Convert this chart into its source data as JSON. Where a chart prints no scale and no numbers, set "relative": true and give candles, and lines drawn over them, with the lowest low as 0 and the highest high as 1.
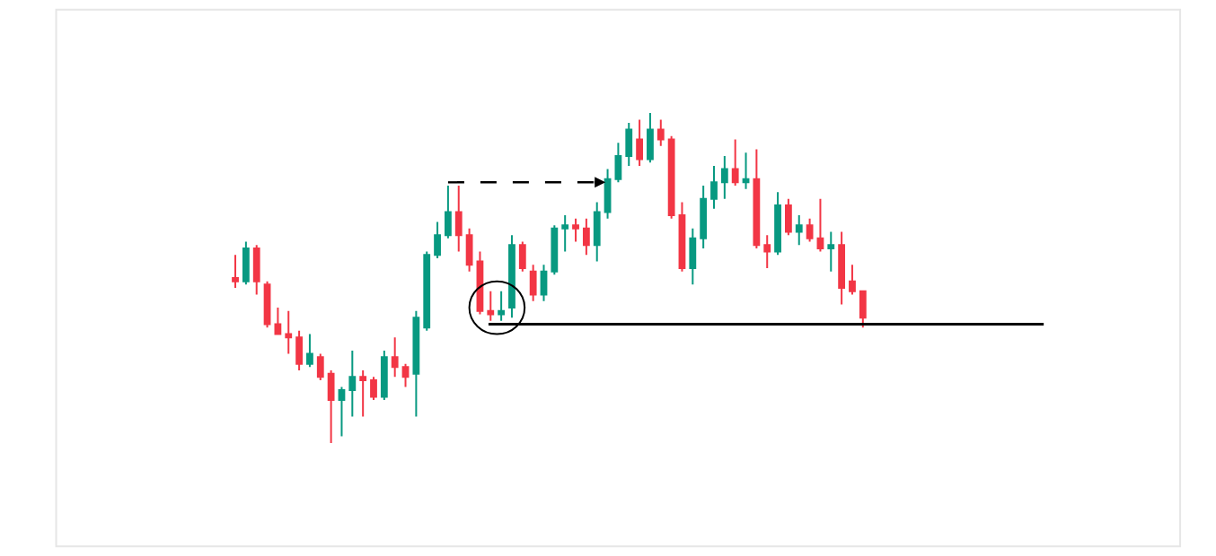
{
  "chart_data": {
    "type": "candlestick",
    "relative": true,
    "categories": [
      null,
      null,
      null,
      null,
      null,
      null,
      null,
      null,
      null,
      null,
      null,
      null,
      null,
      null,
      null,
      null,
      null,
      null,
      null,
      null,
      null,
      null,
      null,
      null,
      null,
      null,
      null,
      null,
      null,
      null,
      null,
      null,
      null,
      null,
      null,
      null,
      null,
      null,
      null,
      null,
      null,
      null,
      null,
      null,
      null,
      null,
      null,
      null,
      null,
      null,
      null,
      null,
      null,
      null,
      null,
      null,
      null,
      null,
      null,
      null
    ],
    "ohlc": [
      [
        0.5,
        0.57,
        0.47,
        0.49
      ],
      [
        0.49,
        0.61,
        0.48,
        0.59
      ],
      [
        0.59,
        0.6,
        0.45,
        0.49
      ],
      [
        0.48,
        0.49,
        0.35,
        0.36
      ],
      [
        0.36,
        0.41,
        0.33,
        0.33
      ],
      [
        0.33,
        0.4,
        0.27,
        0.32
      ],
      [
        0.32,
        0.34,
        0.22,
        0.24
      ],
      [
        0.24,
        0.33,
        0.23,
        0.27
      ],
      [
        0.26,
        0.27,
        0.19,
        0.2
      ],
      [
        0.21,
        0.22,
        0,
        0.13
      ],
      [
        0.13,
        0.17,
        0.02,
        0.16
      ],
      [
        0.16,
        0.28,
        0.08,
        0.2
      ],
      [
        0.2,
        0.22,
        0.08,
        0.19
      ],
      [
        0.19,
        0.2,
        0.13,
        0.14
      ],
      [
        0.14,
        0.28,
        0.13,
        0.26
      ],
      [
        0.26,
        0.32,
        0.2,
        0.23
      ],
      [
        0.23,
        0.24,
        0.17,
        0.2
      ],
      [
        0.21,
        0.4,
        0.08,
        0.38
      ],
      [
        0.35,
        0.58,
        0.34,
        0.57
      ],
      [
        0.57,
        0.67,
        0.56,
        0.63
      ],
      [
        0.63,
        0.78,
        0.62,
        0.7
      ],
      [
        0.7,
        0.78,
        0.58,
        0.63
      ],
      [
        0.63,
        0.65,
        0.52,
        0.54
      ],
      [
        0.55,
        0.58,
        0.39,
        0.4
      ],
      [
        0.4,
        0.46,
        0.37,
        0.39
      ],
      [
        0.39,
        0.46,
        0.37,
        0.4
      ],
      [
        0.41,
        0.63,
        0.38,
        0.6
      ],
      [
        0.6,
        0.61,
        0.52,
        0.53
      ],
      [
        0.52,
        0.54,
        0.43,
        0.45
      ],
      [
        0.45,
        0.54,
        0.43,
        0.52
      ],
      [
        0.52,
        0.66,
        0.51,
        0.65
      ],
      [
        0.65,
        0.69,
        0.58,
        0.66
      ],
      [
        0.66,
        0.68,
        0.61,
        0.65
      ],
      [
        0.65,
        0.68,
        0.57,
        0.6
      ],
      [
        0.6,
        0.73,
        0.55,
        0.7
      ],
      [
        0.7,
        0.83,
        0.68,
        0.8
      ],
      [
        0.8,
        0.91,
        0.79,
        0.87
      ],
      [
        0.87,
        0.97,
        0.84,
        0.95
      ],
      [
        0.92,
        0.98,
        0.84,
        0.86
      ],
      [
        0.86,
        1,
        0.85,
        0.95
      ],
      [
        0.95,
        0.98,
        0.9,
        0.92
      ],
      [
        0.92,
        0.93,
        0.68,
        0.69
      ],
      [
        0.69,
        0.73,
        0.52,
        0.53
      ],
      [
        0.53,
        0.65,
        0.48,
        0.62
      ],
      [
        0.62,
        0.78,
        0.59,
        0.74
      ],
      [
        0.74,
        0.84,
        0.71,
        0.79
      ],
      [
        0.79,
        0.87,
        0.74,
        0.83
      ],
      [
        0.83,
        0.92,
        0.78,
        0.79
      ],
      [
        0.79,
        0.88,
        0.77,
        0.8
      ],
      [
        0.8,
        0.89,
        0.59,
        0.6
      ],
      [
        0.6,
        0.63,
        0.53,
        0.58
      ],
      [
        0.58,
        0.76,
        0.57,
        0.72
      ],
      [
        0.72,
        0.74,
        0.63,
        0.64
      ],
      [
        0.64,
        0.69,
        0.6,
        0.66
      ],
      [
        0.66,
        0.68,
        0.61,
        0.62
      ],
      [
        0.62,
        0.74,
        0.58,
        0.59
      ],
      [
        0.59,
        0.64,
        0.52,
        0.6
      ],
      [
        0.6,
        0.64,
        0.42,
        0.47
      ],
      [
        0.49,
        0.54,
        0.45,
        0.46
      ],
      [
        0.46,
        0.46,
        0.35,
        0.38
      ]
    ],
    "colors": [
      "#f23645",
      "#089981",
      "#f23645",
      "#f23645",
      "#f23645",
      "#f23645",
      "#f23645",
      "#089981",
      "#f23645",
      "#f23645",
      "#089981",
      "#089981",
      "#f23645",
      "#f23645",
      "#089981",
      "#f23645",
      "#f23645",
      "#089981",
      "#089981",
      "#089981",
      "#089981",
      "#f23645",
      "#f23645",
      "#f23645",
      "#f23645",
      "#089981",
      "#089981",
      "#f23645",
      "#f23645",
      "#089981",
      "#089981",
      "#089981",
      "#f23645",
      "#f23645",
      "#089981",
      "#089981",
      "#089981",
      "#089981",
      "#f23645",
      "#089981",
      "#f23645",
      "#f23645",
      "#f23645",
      "#089981",
      "#089981",
      "#089981",
      "#089981",
      "#f23645",
      "#089981",
      "#f23645",
      "#f23645",
      "#089981",
      "#f23645",
      "#089981",
      "#f23645",
      "#f23645",
      "#089981",
      "#f23645",
      "#f23645",
      "#f23645"
    ],
    "ref_lines": [
      {
        "axis": "y",
        "value": 0.36,
        "color": "#000000",
        "line_style": "solid"
      }
    ]
  }
}
